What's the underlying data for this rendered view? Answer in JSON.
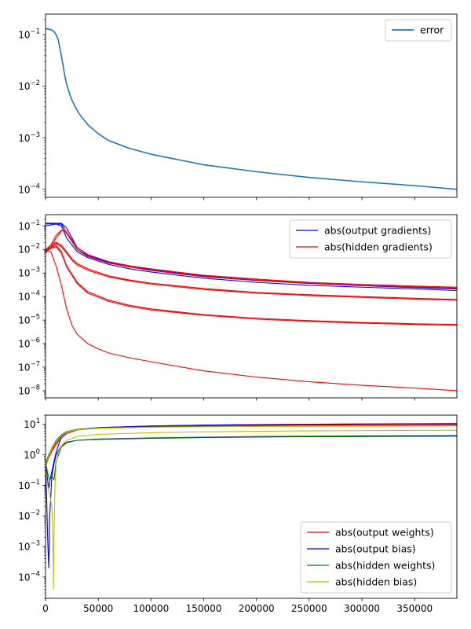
{
  "chart_data": [
    {
      "type": "line",
      "yscale": "log",
      "xlim": [
        0,
        390000
      ],
      "ylim": [
        7e-05,
        0.25
      ],
      "grid": false,
      "legend_position": "top-right",
      "y_ticks": [
        {
          "value": 0.1,
          "mant": "10",
          "exp": "−1"
        },
        {
          "value": 0.01,
          "mant": "10",
          "exp": "−2"
        },
        {
          "value": 0.001,
          "mant": "10",
          "exp": "−3"
        },
        {
          "value": 0.0001,
          "mant": "10",
          "exp": "−4"
        }
      ],
      "series": [
        {
          "name": "error",
          "color": "#1f77b4",
          "x": [
            0,
            2000,
            4000,
            6000,
            8000,
            10000,
            12000,
            14000,
            16000,
            18000,
            20000,
            24000,
            28000,
            32000,
            40000,
            50000,
            60000,
            80000,
            100000,
            150000,
            200000,
            250000,
            300000,
            350000,
            390000
          ],
          "values": [
            0.13,
            0.129,
            0.127,
            0.123,
            0.115,
            0.1,
            0.08,
            0.05,
            0.03,
            0.017,
            0.011,
            0.006,
            0.004,
            0.0029,
            0.0018,
            0.0012,
            0.00088,
            0.00062,
            0.00048,
            0.0003,
            0.00022,
            0.00017,
            0.00014,
            0.000118,
            0.0001
          ]
        }
      ]
    },
    {
      "type": "line",
      "yscale": "log",
      "xlim": [
        0,
        390000
      ],
      "ylim": [
        5e-09,
        0.3
      ],
      "grid": false,
      "legend_position": "top-right",
      "y_ticks": [
        {
          "value": 0.1,
          "mant": "10",
          "exp": "−1"
        },
        {
          "value": 0.01,
          "mant": "10",
          "exp": "−2"
        },
        {
          "value": 0.001,
          "mant": "10",
          "exp": "−3"
        },
        {
          "value": 0.0001,
          "mant": "10",
          "exp": "−4"
        },
        {
          "value": 1e-05,
          "mant": "10",
          "exp": "−5"
        },
        {
          "value": 1e-06,
          "mant": "10",
          "exp": "−6"
        },
        {
          "value": 1e-07,
          "mant": "10",
          "exp": "−7"
        },
        {
          "value": 1e-08,
          "mant": "10",
          "exp": "−8"
        }
      ],
      "legend": [
        {
          "name": "abs(output gradients)",
          "color": "#0000ff"
        },
        {
          "name": "abs(hidden gradients)",
          "color": "#ff0000"
        }
      ],
      "series": [
        {
          "color": "#0000ff",
          "x": [
            0,
            5000,
            10000,
            15000,
            20000,
            30000,
            40000,
            60000,
            80000,
            100000,
            150000,
            200000,
            250000,
            300000,
            350000,
            390000
          ],
          "values": [
            0.12,
            0.125,
            0.12,
            0.1,
            0.03,
            0.008,
            0.0045,
            0.0023,
            0.0015,
            0.0011,
            0.0006,
            0.0004,
            0.0003,
            0.00025,
            0.00021,
            0.00018
          ]
        },
        {
          "color": "#0000ff",
          "x": [
            0,
            5000,
            10000,
            15000,
            20000,
            30000,
            40000,
            60000,
            80000,
            100000,
            150000,
            200000,
            250000,
            300000,
            350000,
            390000
          ],
          "values": [
            0.1,
            0.11,
            0.12,
            0.12,
            0.05,
            0.01,
            0.0055,
            0.0028,
            0.0018,
            0.0013,
            0.0007,
            0.00048,
            0.00036,
            0.00029,
            0.00024,
            0.00021
          ]
        },
        {
          "color": "#0000ff",
          "x": [
            0,
            5000,
            10000,
            15000,
            20000,
            30000,
            40000,
            60000,
            80000,
            100000,
            150000,
            200000,
            250000,
            300000,
            350000,
            390000
          ],
          "values": [
            0.13,
            0.13,
            0.13,
            0.13,
            0.08,
            0.012,
            0.006,
            0.003,
            0.002,
            0.0014,
            0.00075,
            0.0005,
            0.00038,
            0.0003,
            0.00025,
            0.00022
          ]
        },
        {
          "color": "#ff0000",
          "x": [
            0,
            5000,
            10000,
            15000,
            18000,
            22000,
            30000,
            40000,
            60000,
            80000,
            100000,
            150000,
            200000,
            250000,
            300000,
            350000,
            390000
          ],
          "values": [
            0.009,
            0.012,
            0.03,
            0.06,
            0.07,
            0.04,
            0.012,
            0.006,
            0.003,
            0.002,
            0.0015,
            0.0008,
            0.00055,
            0.0004,
            0.00033,
            0.00028,
            0.00025
          ]
        },
        {
          "color": "#ff0000",
          "x": [
            0,
            5000,
            10000,
            15000,
            18000,
            22000,
            30000,
            40000,
            60000,
            80000,
            100000,
            150000,
            200000,
            250000,
            300000,
            350000,
            390000
          ],
          "values": [
            0.01,
            0.015,
            0.04,
            0.065,
            0.06,
            0.035,
            0.01,
            0.005,
            0.0026,
            0.0018,
            0.0013,
            0.0007,
            0.0005,
            0.00038,
            0.0003,
            0.00026,
            0.00023
          ]
        },
        {
          "color": "#ff0000",
          "x": [
            0,
            5000,
            10000,
            15000,
            20000,
            25000,
            30000,
            40000,
            60000,
            80000,
            100000,
            150000,
            200000,
            250000,
            300000,
            350000,
            390000
          ],
          "values": [
            0.008,
            0.015,
            0.02,
            0.015,
            0.008,
            0.004,
            0.0025,
            0.0015,
            0.00075,
            0.0005,
            0.00037,
            0.00022,
            0.00015,
            0.00012,
            0.0001,
            8.5e-05,
            7.5e-05
          ]
        },
        {
          "color": "#ff0000",
          "x": [
            0,
            5000,
            10000,
            15000,
            20000,
            25000,
            30000,
            40000,
            60000,
            80000,
            100000,
            150000,
            200000,
            250000,
            300000,
            350000,
            390000
          ],
          "values": [
            0.007,
            0.012,
            0.018,
            0.013,
            0.007,
            0.0035,
            0.0022,
            0.0013,
            0.00068,
            0.00046,
            0.00034,
            0.0002,
            0.00014,
            0.00011,
            9.2e-05,
            7.8e-05,
            7e-05
          ]
        },
        {
          "color": "#ff0000",
          "x": [
            0,
            5000,
            10000,
            15000,
            20000,
            30000,
            40000,
            60000,
            80000,
            100000,
            150000,
            200000,
            250000,
            300000,
            350000,
            390000
          ],
          "values": [
            0.009,
            0.012,
            0.015,
            0.008,
            0.002,
            0.0004,
            0.00016,
            7e-05,
            4.2e-05,
            3e-05,
            1.7e-05,
            1.2e-05,
            9.5e-06,
            8e-06,
            7e-06,
            6.5e-06
          ]
        },
        {
          "color": "#ff0000",
          "x": [
            0,
            5000,
            10000,
            15000,
            20000,
            30000,
            40000,
            60000,
            80000,
            100000,
            150000,
            200000,
            250000,
            300000,
            350000,
            390000
          ],
          "values": [
            0.008,
            0.011,
            0.013,
            0.007,
            0.0018,
            0.00035,
            0.00014,
            6.2e-05,
            3.8e-05,
            2.7e-05,
            1.6e-05,
            1.1e-05,
            8.8e-06,
            7.4e-06,
            6.5e-06,
            6e-06
          ]
        },
        {
          "color": "#ff0000",
          "x": [
            0,
            5000,
            10000,
            15000,
            20000,
            25000,
            30000,
            40000,
            50000,
            60000,
            80000,
            100000,
            150000,
            200000,
            250000,
            300000,
            350000,
            390000
          ],
          "values": [
            0.009,
            0.008,
            0.002,
            0.0003,
            3e-05,
            6e-06,
            2.5e-06,
            1e-06,
            6e-07,
            4e-07,
            2.5e-07,
            1.7e-07,
            7e-08,
            3.8e-08,
            2.4e-08,
            1.7e-08,
            1.3e-08,
            1e-08
          ]
        }
      ]
    },
    {
      "type": "line",
      "yscale": "log",
      "xlim": [
        0,
        390000
      ],
      "xticks": [
        0,
        50000,
        100000,
        150000,
        200000,
        250000,
        300000,
        350000
      ],
      "ylim": [
        2e-05,
        20
      ],
      "grid": false,
      "legend_position": "bottom-right",
      "y_ticks": [
        {
          "value": 10,
          "mant": "10",
          "exp": "1"
        },
        {
          "value": 1,
          "mant": "10",
          "exp": "0"
        },
        {
          "value": 0.1,
          "mant": "10",
          "exp": "−1"
        },
        {
          "value": 0.01,
          "mant": "10",
          "exp": "−2"
        },
        {
          "value": 0.001,
          "mant": "10",
          "exp": "−3"
        },
        {
          "value": 0.0001,
          "mant": "10",
          "exp": "−4"
        }
      ],
      "legend": [
        {
          "name": "abs(output weights)",
          "color": "#ff0000"
        },
        {
          "name": "abs(output bias)",
          "color": "#0000ff"
        },
        {
          "name": "abs(hidden weights)",
          "color": "#008000"
        },
        {
          "name": "abs(hidden bias)",
          "color": "#bfbf00"
        }
      ],
      "series": [
        {
          "color": "#ff0000",
          "x": [
            0,
            3000,
            6000,
            10000,
            15000,
            20000,
            30000,
            50000,
            100000,
            150000,
            200000,
            250000,
            300000,
            350000,
            390000
          ],
          "values": [
            0.5,
            1.0,
            1.5,
            2.5,
            4.0,
            5.5,
            6.8,
            7.8,
            8.8,
            9.4,
            9.8,
            10.1,
            10.3,
            10.5,
            10.6
          ]
        },
        {
          "color": "#ff0000",
          "x": [
            0,
            3000,
            6000,
            10000,
            15000,
            20000,
            30000,
            50000,
            100000,
            150000,
            200000,
            250000,
            300000,
            350000,
            390000
          ],
          "values": [
            0.4,
            0.8,
            1.3,
            2.2,
            3.5,
            5.0,
            6.5,
            7.6,
            8.5,
            9.0,
            9.3,
            9.5,
            9.6,
            9.7,
            9.8
          ]
        },
        {
          "color": "#0000ff",
          "x": [
            0,
            1000,
            2000,
            3000,
            4000,
            6000,
            8000,
            10000,
            15000,
            20000,
            30000,
            50000,
            100000,
            150000,
            200000,
            250000,
            300000,
            350000,
            390000
          ],
          "values": [
            0.3,
            0.05,
            0.002,
            0.0002,
            0.01,
            0.2,
            0.5,
            1.0,
            2.0,
            2.6,
            3.0,
            3.2,
            3.5,
            3.7,
            3.85,
            3.95,
            4.0,
            4.05,
            4.1
          ]
        },
        {
          "color": "#0000ff",
          "x": [
            0,
            1000,
            2000,
            3000,
            5000,
            8000,
            10000,
            15000,
            20000,
            30000,
            50000,
            100000,
            150000,
            200000,
            250000,
            300000,
            350000,
            390000
          ],
          "values": [
            0.45,
            0.3,
            0.15,
            0.08,
            0.2,
            0.6,
            1.2,
            4.0,
            5.5,
            6.8,
            7.8,
            8.8,
            9.4,
            9.8,
            10.0,
            10.2,
            10.3,
            10.4
          ]
        },
        {
          "color": "#008000",
          "x": [
            0,
            2000,
            4000,
            6000,
            8000,
            10000,
            15000,
            20000,
            30000,
            50000,
            100000,
            150000,
            200000,
            250000,
            300000,
            350000,
            390000
          ],
          "values": [
            0.6,
            0.25,
            0.15,
            0.2,
            0.15,
            0.6,
            1.8,
            2.5,
            3.0,
            3.3,
            3.6,
            3.8,
            4.0,
            4.1,
            4.2,
            4.25,
            4.3
          ]
        },
        {
          "color": "#008000",
          "x": [
            0,
            3000,
            6000,
            10000,
            15000,
            20000,
            30000,
            50000,
            100000,
            150000,
            200000,
            250000,
            300000,
            350000,
            390000
          ],
          "values": [
            0.5,
            1.0,
            1.7,
            3.0,
            4.5,
            5.8,
            6.8,
            7.6,
            8.2,
            8.5,
            8.7,
            8.8,
            8.9,
            8.95,
            9.0
          ]
        },
        {
          "color": "#bfbf00",
          "x": [
            0,
            2000,
            4000,
            6000,
            7000,
            7500,
            8000,
            9000,
            10000,
            12000,
            15000,
            20000,
            30000,
            50000,
            100000,
            150000,
            200000,
            250000,
            300000,
            350000,
            390000
          ],
          "values": [
            0.3,
            0.1,
            0.05,
            0.02,
            0.002,
            4e-05,
            0.002,
            0.1,
            0.5,
            1.2,
            2.0,
            3.0,
            4.0,
            4.7,
            5.3,
            5.7,
            5.9,
            6.1,
            6.2,
            6.3,
            6.4
          ]
        },
        {
          "color": "#bfbf00",
          "x": [
            0,
            3000,
            6000,
            10000,
            15000,
            20000,
            30000,
            50000,
            100000,
            150000,
            200000,
            250000,
            300000,
            350000,
            390000
          ],
          "values": [
            0.4,
            0.9,
            1.6,
            2.8,
            4.2,
            5.6,
            6.6,
            7.4,
            8.0,
            8.3,
            8.5,
            8.6,
            8.7,
            8.8,
            8.85
          ]
        }
      ]
    }
  ]
}
